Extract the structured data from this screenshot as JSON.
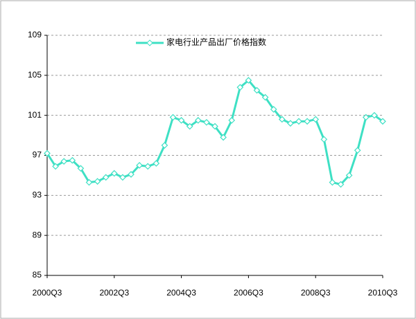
{
  "chart_data": {
    "type": "line",
    "categories": [
      "2000Q3",
      null,
      null,
      null,
      null,
      null,
      null,
      null,
      "2002Q3",
      null,
      null,
      null,
      null,
      null,
      null,
      null,
      "2004Q3",
      null,
      null,
      null,
      null,
      null,
      null,
      null,
      "2006Q3",
      null,
      null,
      null,
      null,
      null,
      null,
      null,
      "2008Q3",
      null,
      null,
      null,
      null,
      null,
      null,
      null,
      "2010Q3"
    ],
    "series": [
      {
        "name": "家电行业产品出厂价格指数",
        "color": "#3ee0c4",
        "values": [
          97.2,
          95.9,
          96.4,
          96.5,
          95.7,
          94.3,
          94.4,
          94.8,
          95.2,
          94.8,
          95.1,
          96.0,
          95.9,
          96.2,
          98.0,
          100.8,
          100.5,
          99.9,
          100.5,
          100.3,
          99.9,
          98.8,
          100.5,
          103.8,
          104.5,
          103.5,
          102.8,
          101.6,
          100.6,
          100.2,
          100.4,
          100.4,
          100.6,
          98.6,
          94.3,
          94.1,
          95.0,
          97.5,
          100.8,
          101.0,
          100.4
        ]
      }
    ],
    "ylim": [
      85,
      109
    ],
    "yticks": [
      85,
      89,
      93,
      97,
      101,
      105,
      109
    ],
    "grid": true,
    "legend": "top"
  }
}
